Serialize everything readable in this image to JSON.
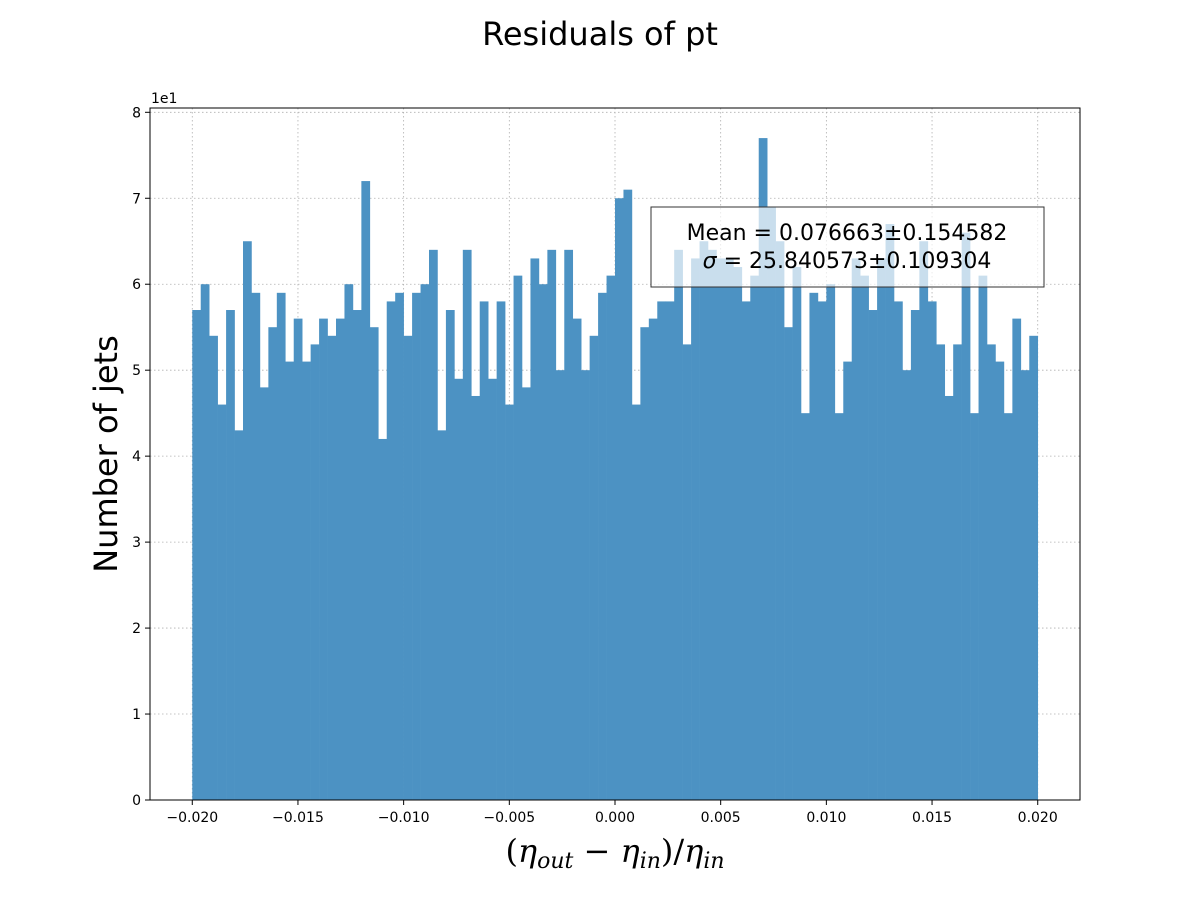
{
  "chart_data": {
    "type": "bar",
    "title": "Residuals of pt",
    "xlabel": {
      "open": "(",
      "eta1": "η",
      "sub_out": "out",
      "minus": " − ",
      "eta2": "η",
      "sub_in1": "in",
      "close_slash": ")/",
      "eta3": "η",
      "sub_in2": "in"
    },
    "ylabel": "Number of jets",
    "y_offset_label": "1e1",
    "xlim": [
      -0.022,
      0.022
    ],
    "ylim": [
      0,
      8.05
    ],
    "grid": true,
    "x_ticks": [
      -0.02,
      -0.015,
      -0.01,
      -0.005,
      0.0,
      0.005,
      0.01,
      0.015,
      0.02
    ],
    "x_tick_labels": [
      "−0.020",
      "−0.015",
      "−0.010",
      "−0.005",
      "0.000",
      "0.005",
      "0.010",
      "0.015",
      "0.020"
    ],
    "y_ticks": [
      0,
      1,
      2,
      3,
      4,
      5,
      6,
      7,
      8
    ],
    "y_tick_labels": [
      "0",
      "1",
      "2",
      "3",
      "4",
      "5",
      "6",
      "7",
      "8"
    ],
    "bar_color": "#4c92c3",
    "bin_range": [
      -0.02,
      0.02
    ],
    "values": [
      5.7,
      6.0,
      5.4,
      4.6,
      5.7,
      4.3,
      6.5,
      5.9,
      4.8,
      5.5,
      5.9,
      5.1,
      5.6,
      5.1,
      5.3,
      5.6,
      5.4,
      5.6,
      6.0,
      5.7,
      7.2,
      5.5,
      4.2,
      5.8,
      5.9,
      5.4,
      5.9,
      6.0,
      6.4,
      4.3,
      5.7,
      4.9,
      6.4,
      4.7,
      5.8,
      4.9,
      5.8,
      4.6,
      6.1,
      4.8,
      6.3,
      6.0,
      6.4,
      5.0,
      6.4,
      5.6,
      5.0,
      5.4,
      5.9,
      6.1,
      7.0,
      7.1,
      4.6,
      5.5,
      5.6,
      5.8,
      5.8,
      6.4,
      5.3,
      6.3,
      6.5,
      6.4,
      6.3,
      6.3,
      6.2,
      5.8,
      6.1,
      7.7,
      6.9,
      6.5,
      5.5,
      6.2,
      4.5,
      5.9,
      5.8,
      6.0,
      4.5,
      5.1,
      6.3,
      6.1,
      5.7,
      6.3,
      6.7,
      5.8,
      5.0,
      5.7,
      6.5,
      5.8,
      5.3,
      4.7,
      5.3,
      6.6,
      4.5,
      6.1,
      5.3,
      5.1,
      4.5,
      5.6,
      5.0,
      5.4
    ],
    "annotation": {
      "line1": "Mean = 0.076663±0.154582",
      "line2_symbol": "σ",
      "line2_rest": " = 25.840573±0.109304"
    }
  }
}
